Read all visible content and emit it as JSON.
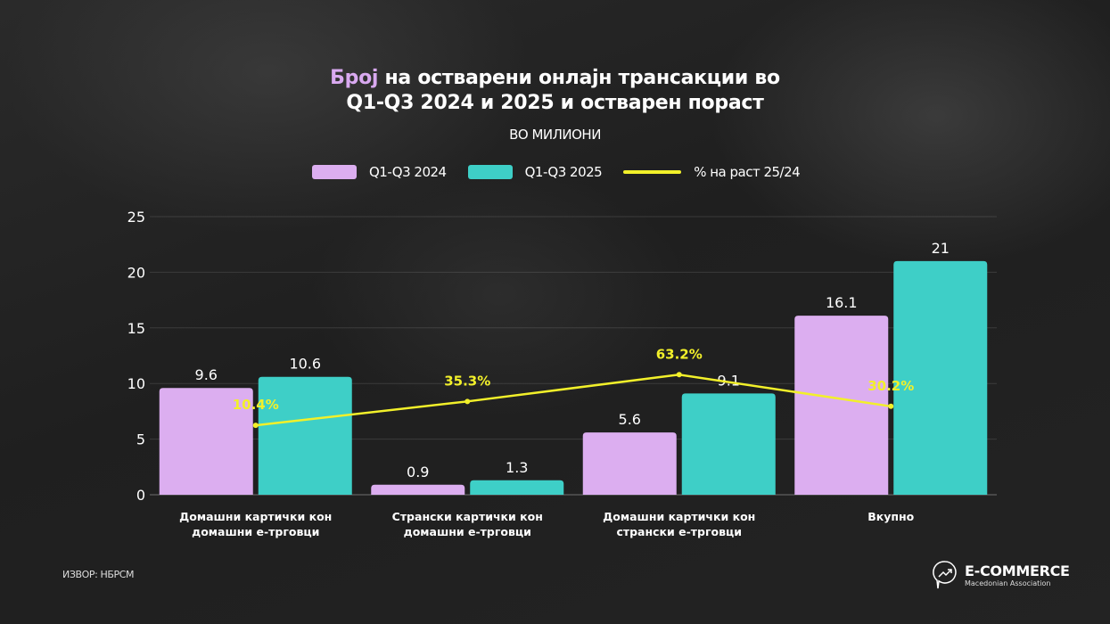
{
  "title": {
    "highlight": "Број",
    "rest_line1": " на остварени онлајн трансакции во",
    "line2": "Q1-Q3 2024 и 2025 и остварен пораст"
  },
  "subtitle": "ВО МИЛИОНИ",
  "source": "ИЗВОР: НБРСМ",
  "logo": {
    "name": "E-COMMERCE",
    "tagline": "Macedonian Association"
  },
  "colors": {
    "series2024": "#dcaef0",
    "series2025": "#3ecfc7",
    "growth": "#f2f02a",
    "title_highlight": "#d9a9f0"
  },
  "chart_data": {
    "type": "bar",
    "categories": [
      "Домашни картички кон\nдомашни е-трговци",
      "Странски картички кон\nдомашни е-трговци",
      "Домашни картички кон\nстрански е-трговци",
      "Вкупно"
    ],
    "series": [
      {
        "name": "Q1-Q3 2024",
        "type": "bar",
        "values": [
          9.6,
          0.9,
          5.6,
          16.1
        ],
        "labels": [
          "9.6",
          "0.9",
          "5.6",
          "16.1"
        ]
      },
      {
        "name": "Q1-Q3 2025",
        "type": "bar",
        "values": [
          10.6,
          1.3,
          9.1,
          21
        ],
        "labels": [
          "10.6",
          "1.3",
          "9.1",
          "21"
        ]
      },
      {
        "name": "% на раст 25/24",
        "type": "line",
        "axis": "secondary-hidden",
        "values": [
          10.4,
          35.3,
          63.2,
          30.2
        ],
        "labels": [
          "10.4%",
          "35.3%",
          "63.2%",
          "30.2%"
        ]
      }
    ],
    "ylim": [
      0,
      25
    ],
    "yticks": [
      "0",
      "5",
      "10",
      "15",
      "20",
      "25"
    ],
    "grid": true,
    "legend": "top"
  }
}
